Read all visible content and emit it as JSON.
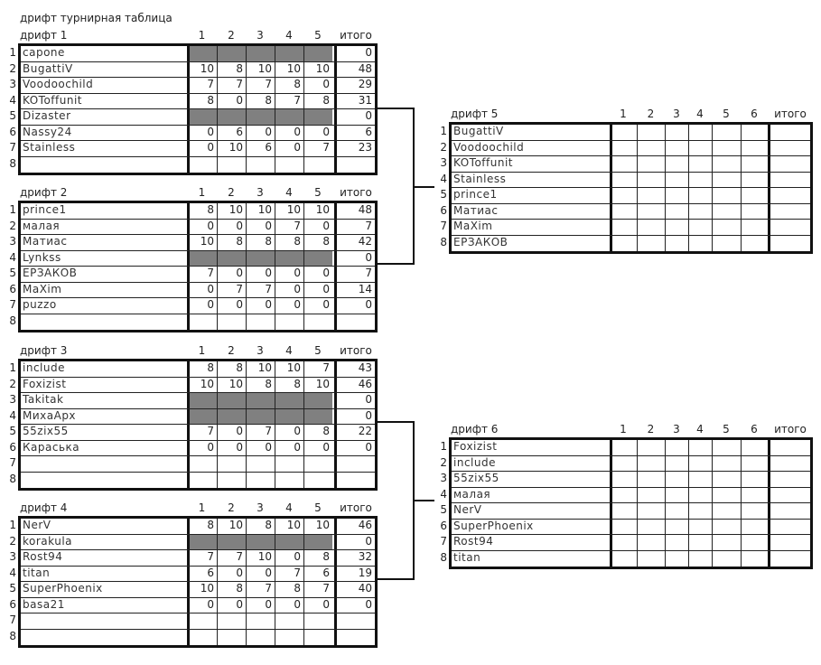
{
  "title": "дрифт турнирная таблица",
  "total_label": "итого",
  "gray_color": "#808080",
  "tables": [
    {
      "name": "дрифт 1",
      "columns": [
        "1",
        "2",
        "3",
        "4",
        "5"
      ],
      "rows": [
        {
          "n": "1",
          "player": "capone",
          "scores": null,
          "total": "0"
        },
        {
          "n": "2",
          "player": "BugattiV",
          "scores": [
            "10",
            "8",
            "10",
            "10",
            "10"
          ],
          "total": "48"
        },
        {
          "n": "3",
          "player": "Voodoochild",
          "scores": [
            "7",
            "7",
            "7",
            "8",
            "0"
          ],
          "total": "29"
        },
        {
          "n": "4",
          "player": "KOToffunit",
          "scores": [
            "8",
            "0",
            "8",
            "7",
            "8"
          ],
          "total": "31"
        },
        {
          "n": "5",
          "player": "Dizaster",
          "scores": null,
          "total": "0"
        },
        {
          "n": "6",
          "player": "Nassy24",
          "scores": [
            "0",
            "6",
            "0",
            "0",
            "0"
          ],
          "total": "6"
        },
        {
          "n": "7",
          "player": "Stainless",
          "scores": [
            "0",
            "10",
            "6",
            "0",
            "7"
          ],
          "total": "23"
        },
        {
          "n": "8",
          "player": "",
          "scores": [
            "",
            "",
            "",
            "",
            ""
          ],
          "total": ""
        }
      ]
    },
    {
      "name": "дрифт 2",
      "columns": [
        "1",
        "2",
        "3",
        "4",
        "5"
      ],
      "rows": [
        {
          "n": "1",
          "player": "prince1",
          "scores": [
            "8",
            "10",
            "10",
            "10",
            "10"
          ],
          "total": "48"
        },
        {
          "n": "2",
          "player": "малая",
          "scores": [
            "0",
            "0",
            "0",
            "7",
            "0"
          ],
          "total": "7"
        },
        {
          "n": "3",
          "player": "Матиас",
          "scores": [
            "10",
            "8",
            "8",
            "8",
            "8"
          ],
          "total": "42"
        },
        {
          "n": "4",
          "player": "Lynkss",
          "scores": null,
          "total": "0"
        },
        {
          "n": "5",
          "player": "ЕРЗАКОВ",
          "scores": [
            "7",
            "0",
            "0",
            "0",
            "0"
          ],
          "total": "7"
        },
        {
          "n": "6",
          "player": "MaXim",
          "scores": [
            "0",
            "7",
            "7",
            "0",
            "0"
          ],
          "total": "14"
        },
        {
          "n": "7",
          "player": "puzzo",
          "scores": [
            "0",
            "0",
            "0",
            "0",
            "0"
          ],
          "total": "0"
        },
        {
          "n": "8",
          "player": "",
          "scores": [
            "",
            "",
            "",
            "",
            ""
          ],
          "total": ""
        }
      ]
    },
    {
      "name": "дрифт 3",
      "columns": [
        "1",
        "2",
        "3",
        "4",
        "5"
      ],
      "rows": [
        {
          "n": "1",
          "player": "include",
          "scores": [
            "8",
            "8",
            "10",
            "10",
            "7"
          ],
          "total": "43"
        },
        {
          "n": "2",
          "player": "Foxizist",
          "scores": [
            "10",
            "10",
            "8",
            "8",
            "10"
          ],
          "total": "46"
        },
        {
          "n": "3",
          "player": "Takitak",
          "scores": null,
          "total": "0"
        },
        {
          "n": "4",
          "player": "МихаАрх",
          "scores": null,
          "total": "0"
        },
        {
          "n": "5",
          "player": "55zix55",
          "scores": [
            "7",
            "0",
            "7",
            "0",
            "8"
          ],
          "total": "22"
        },
        {
          "n": "6",
          "player": "Караська",
          "scores": [
            "0",
            "0",
            "0",
            "0",
            "0"
          ],
          "total": "0"
        },
        {
          "n": "7",
          "player": "",
          "scores": [
            "",
            "",
            "",
            "",
            ""
          ],
          "total": ""
        },
        {
          "n": "8",
          "player": "",
          "scores": [
            "",
            "",
            "",
            "",
            ""
          ],
          "total": ""
        }
      ]
    },
    {
      "name": "дрифт 4",
      "columns": [
        "1",
        "2",
        "3",
        "4",
        "5"
      ],
      "rows": [
        {
          "n": "1",
          "player": "NerV",
          "scores": [
            "8",
            "10",
            "8",
            "10",
            "10"
          ],
          "total": "46"
        },
        {
          "n": "2",
          "player": "korakula",
          "scores": null,
          "total": "0"
        },
        {
          "n": "3",
          "player": "Rost94",
          "scores": [
            "7",
            "7",
            "10",
            "0",
            "8"
          ],
          "total": "32"
        },
        {
          "n": "4",
          "player": "titan",
          "scores": [
            "6",
            "0",
            "0",
            "7",
            "6"
          ],
          "total": "19"
        },
        {
          "n": "5",
          "player": "SuperPhoenix",
          "scores": [
            "10",
            "8",
            "7",
            "8",
            "7"
          ],
          "total": "40"
        },
        {
          "n": "6",
          "player": "basa21",
          "scores": [
            "0",
            "0",
            "0",
            "0",
            "0"
          ],
          "total": "0"
        },
        {
          "n": "7",
          "player": "",
          "scores": [
            "",
            "",
            "",
            "",
            ""
          ],
          "total": ""
        },
        {
          "n": "8",
          "player": "",
          "scores": [
            "",
            "",
            "",
            "",
            ""
          ],
          "total": ""
        }
      ]
    },
    {
      "name": "дрифт 5",
      "columns": [
        "1",
        "2",
        "3",
        "4",
        "5",
        "6"
      ],
      "rows": [
        {
          "n": "1",
          "player": "BugattiV",
          "scores": [
            "",
            "",
            "",
            "",
            "",
            ""
          ],
          "total": ""
        },
        {
          "n": "2",
          "player": "Voodoochild",
          "scores": [
            "",
            "",
            "",
            "",
            "",
            ""
          ],
          "total": ""
        },
        {
          "n": "3",
          "player": "KOToffunit",
          "scores": [
            "",
            "",
            "",
            "",
            "",
            ""
          ],
          "total": ""
        },
        {
          "n": "4",
          "player": "Stainless",
          "scores": [
            "",
            "",
            "",
            "",
            "",
            ""
          ],
          "total": ""
        },
        {
          "n": "5",
          "player": "prince1",
          "scores": [
            "",
            "",
            "",
            "",
            "",
            ""
          ],
          "total": ""
        },
        {
          "n": "6",
          "player": "Матиас",
          "scores": [
            "",
            "",
            "",
            "",
            "",
            ""
          ],
          "total": ""
        },
        {
          "n": "7",
          "player": "MaXim",
          "scores": [
            "",
            "",
            "",
            "",
            "",
            ""
          ],
          "total": ""
        },
        {
          "n": "8",
          "player": "ЕРЗАКОВ",
          "scores": [
            "",
            "",
            "",
            "",
            "",
            ""
          ],
          "total": ""
        }
      ]
    },
    {
      "name": "дрифт 6",
      "columns": [
        "1",
        "2",
        "3",
        "4",
        "5",
        "6"
      ],
      "rows": [
        {
          "n": "1",
          "player": "Foxizist",
          "scores": [
            "",
            "",
            "",
            "",
            "",
            ""
          ],
          "total": ""
        },
        {
          "n": "2",
          "player": "include",
          "scores": [
            "",
            "",
            "",
            "",
            "",
            ""
          ],
          "total": ""
        },
        {
          "n": "3",
          "player": "55zix55",
          "scores": [
            "",
            "",
            "",
            "",
            "",
            ""
          ],
          "total": ""
        },
        {
          "n": "4",
          "player": "малая",
          "scores": [
            "",
            "",
            "",
            "",
            "",
            ""
          ],
          "total": ""
        },
        {
          "n": "5",
          "player": "NerV",
          "scores": [
            "",
            "",
            "",
            "",
            "",
            ""
          ],
          "total": ""
        },
        {
          "n": "6",
          "player": "SuperPhoenix",
          "scores": [
            "",
            "",
            "",
            "",
            "",
            ""
          ],
          "total": ""
        },
        {
          "n": "7",
          "player": "Rost94",
          "scores": [
            "",
            "",
            "",
            "",
            "",
            ""
          ],
          "total": ""
        },
        {
          "n": "8",
          "player": "titan",
          "scores": [
            "",
            "",
            "",
            "",
            "",
            ""
          ],
          "total": ""
        }
      ]
    }
  ]
}
